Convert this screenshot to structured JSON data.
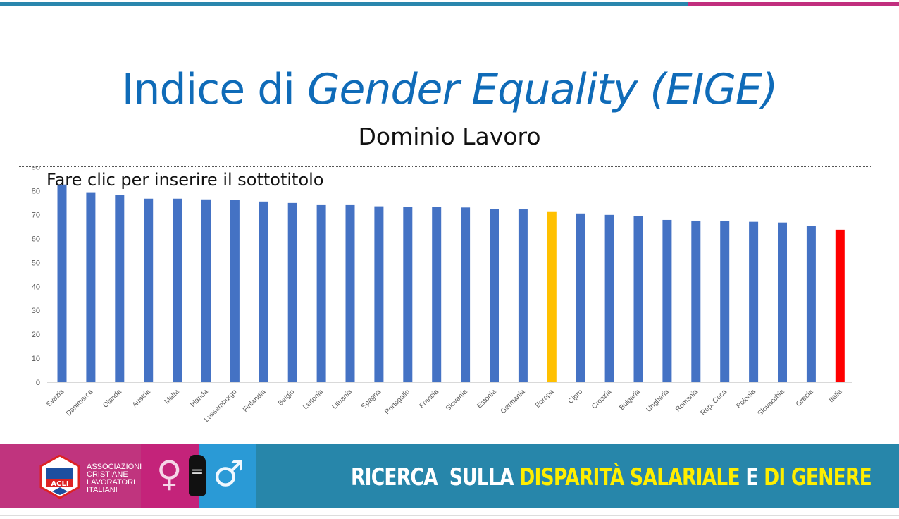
{
  "slide": {
    "title_plain": "Indice di ",
    "title_italic": "Gender Equality (EIGE)",
    "subtitle": "Dominio Lavoro",
    "placeholder": "Fare clic per inserire il sottotitolo"
  },
  "colors": {
    "bar": "#4472c4",
    "europa": "#ffc000",
    "italia": "#ff0000",
    "title": "#0f6bb8"
  },
  "chart_data": {
    "type": "bar",
    "title": "",
    "xlabel": "",
    "ylabel": "",
    "ylim": [
      0,
      90
    ],
    "yticks": [
      0,
      10,
      20,
      30,
      40,
      50,
      60,
      70,
      80,
      90
    ],
    "grid": false,
    "categories": [
      "Svezia",
      "Danimarca",
      "Olanda",
      "Austria",
      "Malta",
      "Irlanda",
      "Lussemburgo",
      "Finlandia",
      "Belgio",
      "Lettonia",
      "Lituania",
      "Spagna",
      "Portogallo",
      "Francia",
      "Slovenia",
      "Estonia",
      "Germania",
      "Europa",
      "Cipro",
      "Croazia",
      "Bulgaria",
      "Ungheria",
      "Romania",
      "Rep. Ceca",
      "Polonia",
      "Slovacchia",
      "Grecia",
      "Italia"
    ],
    "values": [
      82.6,
      79.4,
      78.2,
      76.7,
      76.7,
      76.4,
      76.1,
      75.5,
      74.9,
      74.0,
      74.0,
      73.5,
      73.2,
      73.2,
      73.0,
      72.4,
      72.2,
      71.4,
      70.5,
      69.9,
      69.4,
      67.8,
      67.5,
      67.2,
      67.0,
      66.7,
      65.2,
      63.7
    ],
    "highlight": {
      "Europa": "#ffc000",
      "Italia": "#ff0000"
    }
  },
  "footer": {
    "org_lines": [
      "ASSOCIAZIONI",
      "CRISTIANE",
      "LAVORATORI",
      "ITALIANI"
    ],
    "logo_text": "ACLI",
    "banner_white1": "RICERCA  SULLA ",
    "banner_yellow1": "DISPARITÀ SALARIALE",
    "banner_white2": " E ",
    "banner_yellow2": "DI GENERE",
    "venus": "♀",
    "equals": "=",
    "mars": "♂"
  }
}
